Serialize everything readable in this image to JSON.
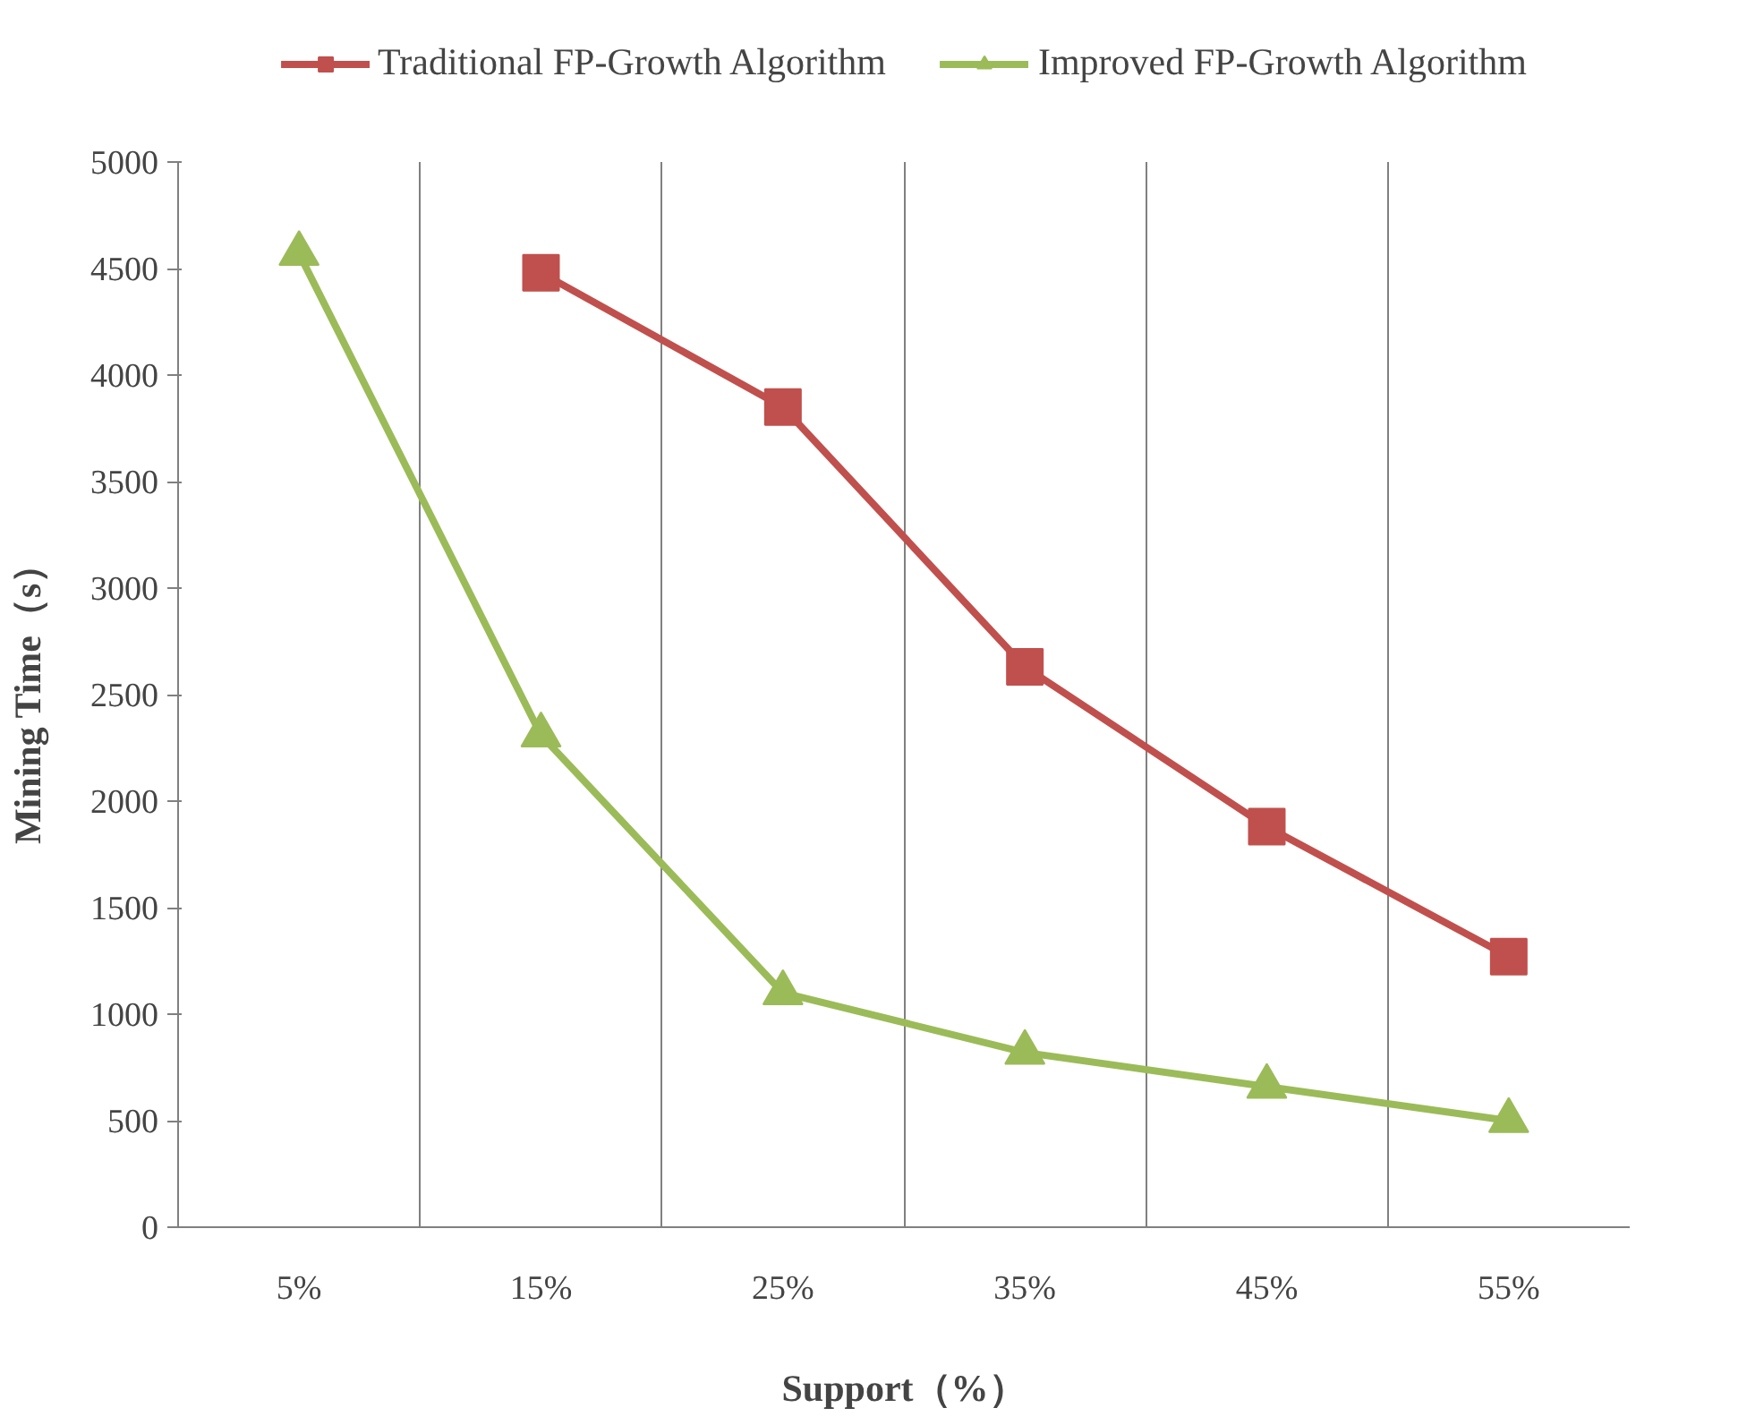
{
  "chart_data": {
    "type": "line",
    "xlabel": "Support（%）",
    "ylabel": "Mining Time（s）",
    "categories": [
      "5%",
      "15%",
      "25%",
      "35%",
      "45%",
      "55%"
    ],
    "series": [
      {
        "name": "Traditional FP-Growth Algorithm",
        "color": "#c0504d",
        "marker": "square",
        "values": [
          null,
          4480,
          3850,
          2630,
          1880,
          1270
        ]
      },
      {
        "name": "Improved FP-Growth Algorithm",
        "color": "#9bbb59",
        "marker": "triangle",
        "values": [
          4570,
          2310,
          1100,
          820,
          660,
          500
        ]
      }
    ],
    "ylim": [
      0,
      5000
    ],
    "yticks": [
      0,
      500,
      1000,
      1500,
      2000,
      2500,
      3000,
      3500,
      4000,
      4500,
      5000
    ],
    "grid": "x",
    "legend": "top",
    "line_style": "solid"
  }
}
